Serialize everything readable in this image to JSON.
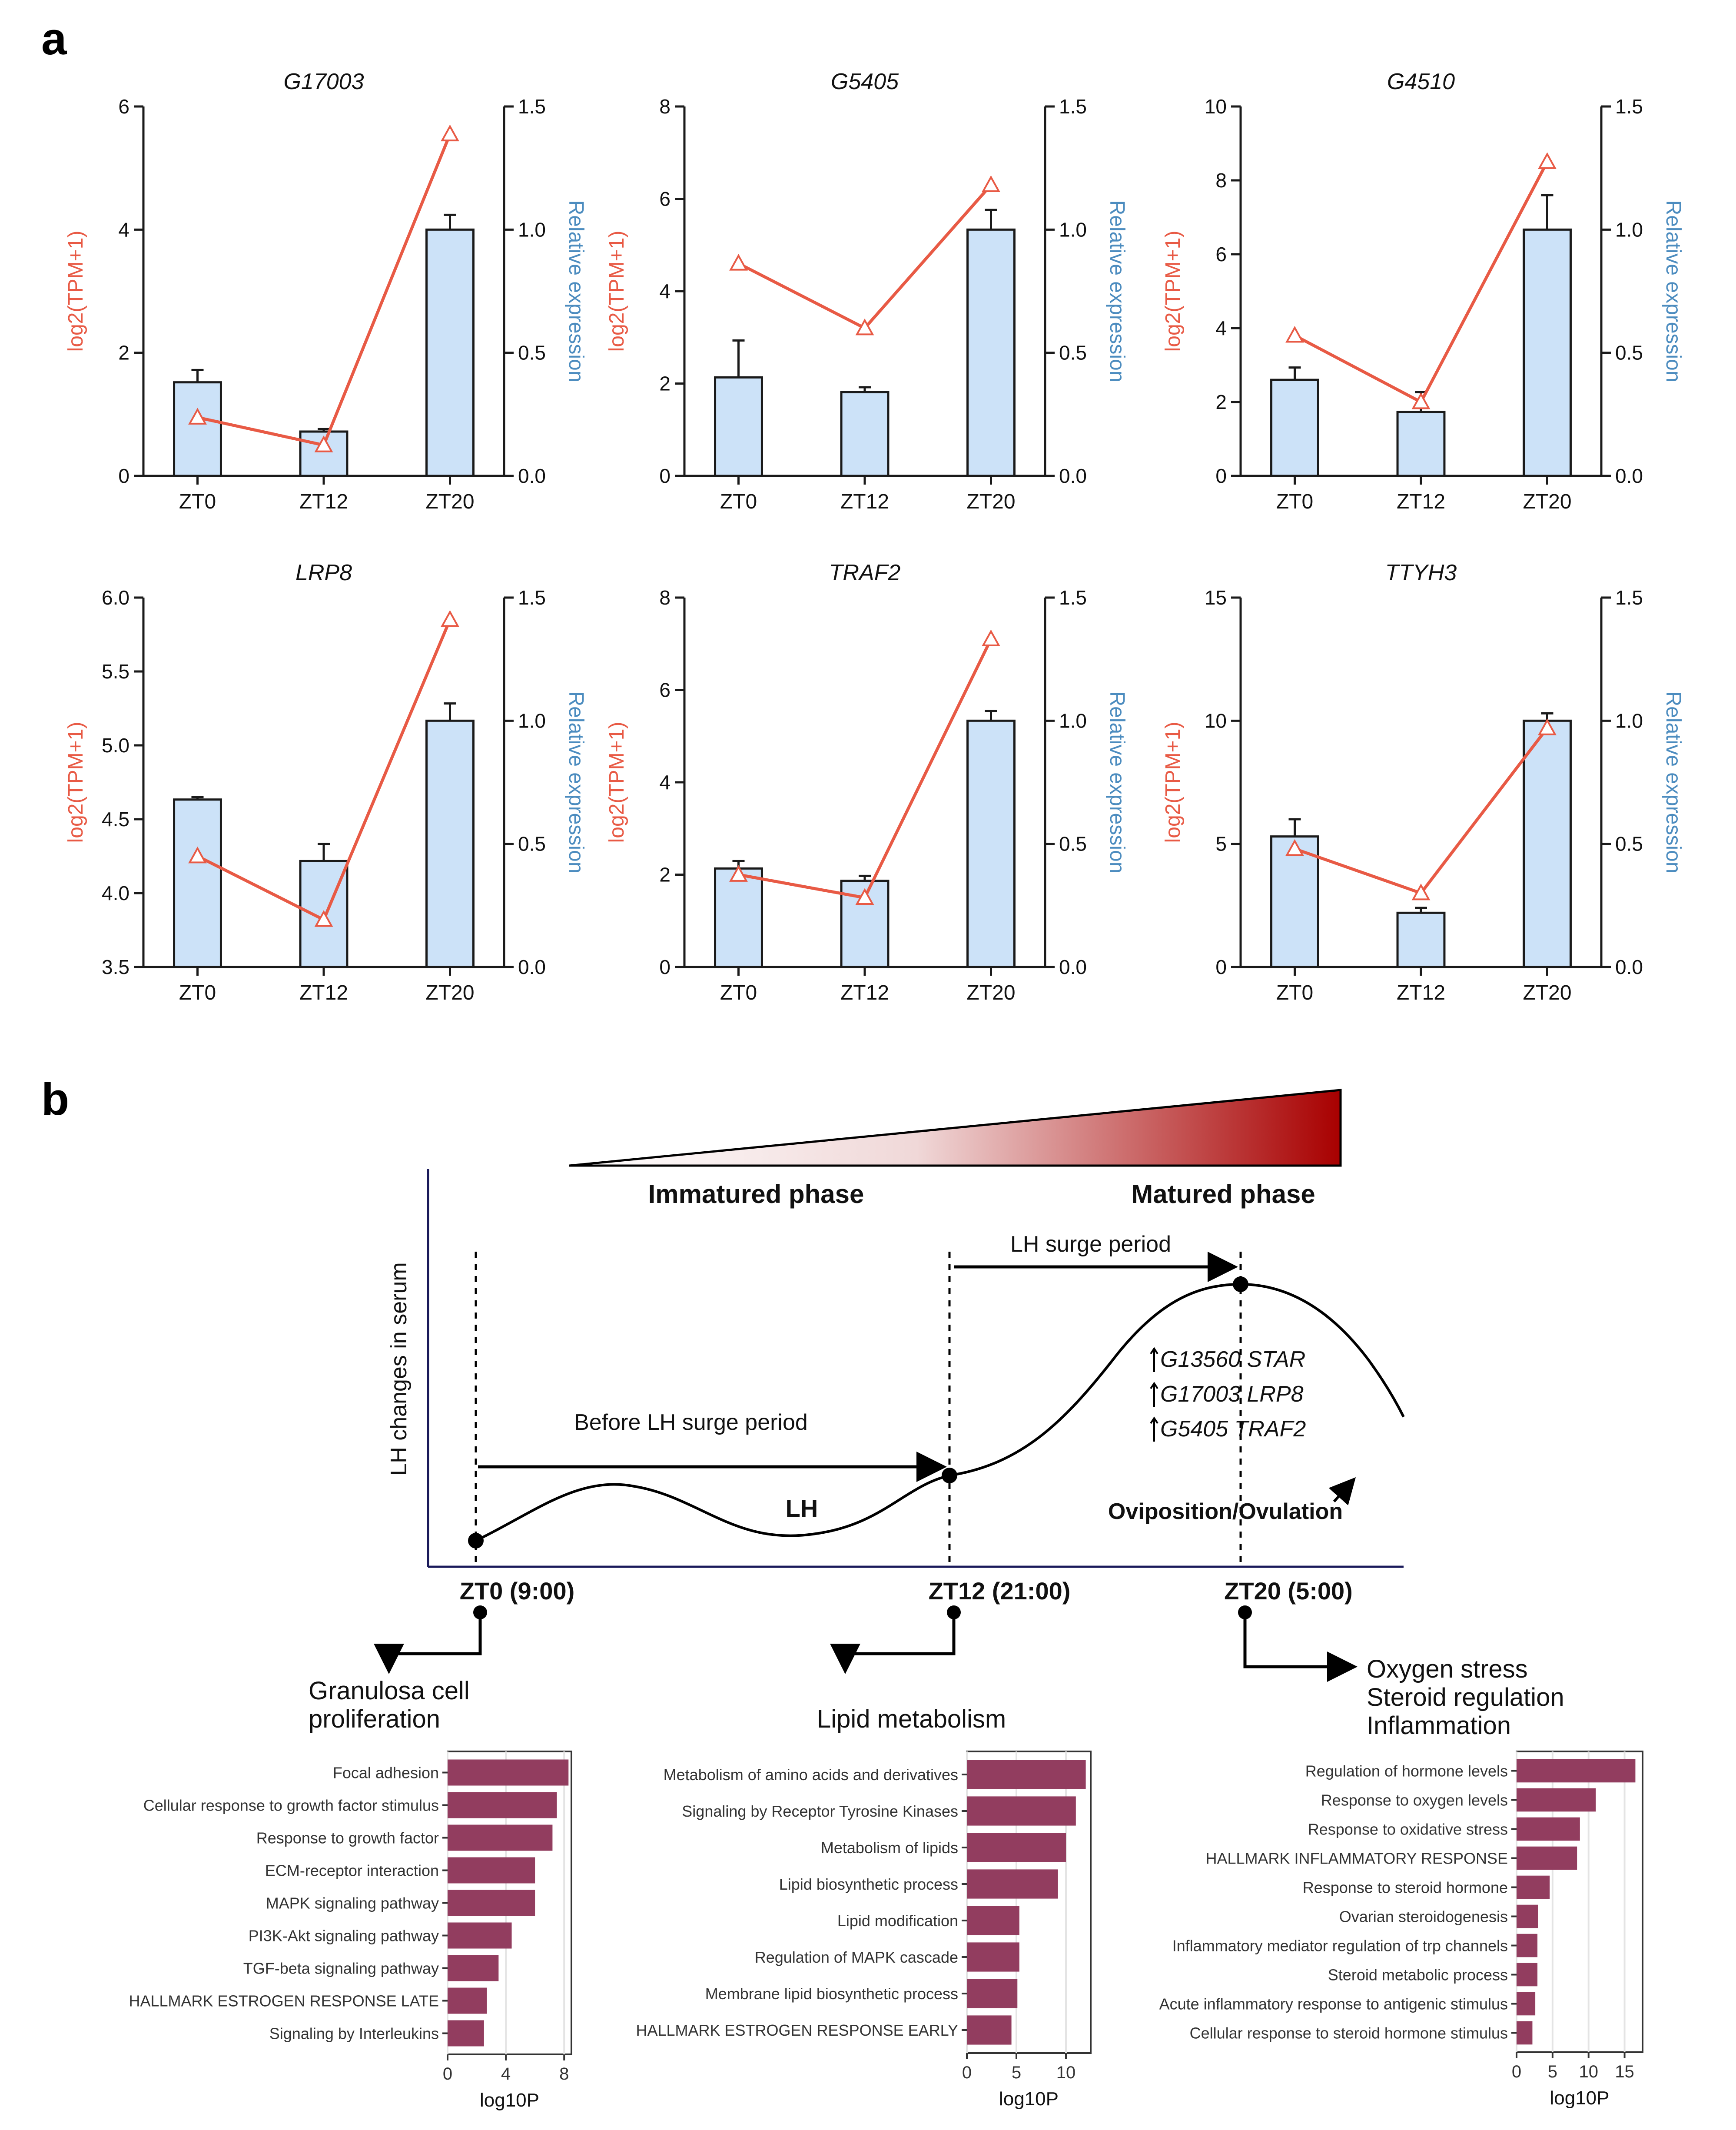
{
  "panel_labels": {
    "a": "a",
    "b": "b"
  },
  "colors": {
    "line": "#e85a45",
    "bar_fill": "#cce2f8",
    "bar_stroke": "#1a1a1a",
    "axis": "#1a1a1a",
    "right_label": "#4c8cbf",
    "enrich_bar": "#923d5f",
    "gradient_dark": "#a80000",
    "timeline_axis": "#1a1a5a"
  },
  "chart_data": [
    {
      "type": "bar+line",
      "title": "G17003",
      "categories": [
        "ZT0",
        "ZT12",
        "ZT20"
      ],
      "left_axis": {
        "label": "log2(TPM+1)",
        "min": 0,
        "max": 6,
        "ticks": [
          "0",
          "2",
          "4",
          "6"
        ],
        "tick_values": [
          0,
          2,
          4,
          6
        ]
      },
      "right_axis": {
        "label": "Relative expression",
        "min": 0,
        "max": 1.5,
        "ticks": [
          "0.0",
          "0.5",
          "1.0",
          "1.5"
        ],
        "tick_values": [
          0,
          0.5,
          1.0,
          1.5
        ]
      },
      "bars": [
        0.38,
        0.18,
        1.0
      ],
      "bar_errors": [
        0.05,
        0.01,
        0.06
      ],
      "line": [
        0.95,
        0.5,
        5.55
      ]
    },
    {
      "type": "bar+line",
      "title": "G5405",
      "categories": [
        "ZT0",
        "ZT12",
        "ZT20"
      ],
      "left_axis": {
        "label": "log2(TPM+1)",
        "min": 0,
        "max": 8,
        "ticks": [
          "0",
          "2",
          "4",
          "6",
          "8"
        ],
        "tick_values": [
          0,
          2,
          4,
          6,
          8
        ]
      },
      "right_axis": {
        "label": "Relative expression",
        "min": 0,
        "max": 1.5,
        "ticks": [
          "0.0",
          "0.5",
          "1.0",
          "1.5"
        ],
        "tick_values": [
          0,
          0.5,
          1.0,
          1.5
        ]
      },
      "bars": [
        0.4,
        0.34,
        1.0
      ],
      "bar_errors": [
        0.15,
        0.02,
        0.08
      ],
      "line": [
        4.6,
        3.2,
        6.3
      ]
    },
    {
      "type": "bar+line",
      "title": "G4510",
      "categories": [
        "ZT0",
        "ZT12",
        "ZT20"
      ],
      "left_axis": {
        "label": "log2(TPM+1)",
        "min": 0,
        "max": 10,
        "ticks": [
          "0",
          "2",
          "4",
          "6",
          "8",
          "10"
        ],
        "tick_values": [
          0,
          2,
          4,
          6,
          8,
          10
        ]
      },
      "right_axis": {
        "label": "Relative expression",
        "min": 0,
        "max": 1.5,
        "ticks": [
          "0.0",
          "0.5",
          "1.0",
          "1.5"
        ],
        "tick_values": [
          0,
          0.5,
          1.0,
          1.5
        ]
      },
      "bars": [
        0.39,
        0.26,
        1.0
      ],
      "bar_errors": [
        0.05,
        0.08,
        0.14
      ],
      "line": [
        3.8,
        2.0,
        8.5
      ]
    },
    {
      "type": "bar+line",
      "title": "LRP8",
      "categories": [
        "ZT0",
        "ZT12",
        "ZT20"
      ],
      "left_axis": {
        "label": "log2(TPM+1)",
        "min": 3.5,
        "max": 6.0,
        "ticks": [
          "3.5",
          "4.0",
          "4.5",
          "5.0",
          "5.5",
          "6.0"
        ],
        "tick_values": [
          3.5,
          4.0,
          4.5,
          5.0,
          5.5,
          6.0
        ]
      },
      "right_axis": {
        "label": "Relative expression",
        "min": 0,
        "max": 1.5,
        "ticks": [
          "0.0",
          "0.5",
          "1.0",
          "1.5"
        ],
        "tick_values": [
          0,
          0.5,
          1.0,
          1.5
        ]
      },
      "bars": [
        0.68,
        0.43,
        1.0
      ],
      "bar_errors": [
        0.01,
        0.07,
        0.07
      ],
      "line": [
        4.25,
        3.82,
        5.85
      ]
    },
    {
      "type": "bar+line",
      "title": "TRAF2",
      "categories": [
        "ZT0",
        "ZT12",
        "ZT20"
      ],
      "left_axis": {
        "label": "log2(TPM+1)",
        "min": 0,
        "max": 8,
        "ticks": [
          "0",
          "2",
          "4",
          "6",
          "8"
        ],
        "tick_values": [
          0,
          2,
          4,
          6,
          8
        ]
      },
      "right_axis": {
        "label": "Relative expression",
        "min": 0,
        "max": 1.5,
        "ticks": [
          "0.0",
          "0.5",
          "1.0",
          "1.5"
        ],
        "tick_values": [
          0,
          0.5,
          1.0,
          1.5
        ]
      },
      "bars": [
        0.4,
        0.35,
        1.0
      ],
      "bar_errors": [
        0.03,
        0.02,
        0.04
      ],
      "line": [
        2.0,
        1.5,
        7.1
      ]
    },
    {
      "type": "bar+line",
      "title": "TTYH3",
      "categories": [
        "ZT0",
        "ZT12",
        "ZT20"
      ],
      "left_axis": {
        "label": "log2(TPM+1)",
        "min": 0,
        "max": 15,
        "ticks": [
          "0",
          "5",
          "10",
          "15"
        ],
        "tick_values": [
          0,
          5,
          10,
          15
        ]
      },
      "right_axis": {
        "label": "Relative expression",
        "min": 0,
        "max": 1.5,
        "ticks": [
          "0.0",
          "0.5",
          "1.0",
          "1.5"
        ],
        "tick_values": [
          0,
          0.5,
          1.0,
          1.5
        ]
      },
      "bars": [
        0.53,
        0.22,
        1.0
      ],
      "bar_errors": [
        0.07,
        0.02,
        0.03
      ],
      "line": [
        4.8,
        3.0,
        9.7
      ]
    },
    {
      "type": "bar",
      "orientation": "horizontal",
      "xlabel": "log10P",
      "xlim": [
        0,
        8.5
      ],
      "xticks": [
        "0",
        "4",
        "8"
      ],
      "xtick_values": [
        0,
        4,
        8
      ],
      "categories": [
        "Focal adhesion",
        "Cellular response to growth factor stimulus",
        "Response to growth factor",
        "ECM-receptor interaction",
        "MAPK signaling pathway",
        "PI3K-Akt signaling pathway",
        "TGF-beta signaling pathway",
        "HALLMARK ESTROGEN RESPONSE LATE",
        "Signaling by Interleukins"
      ],
      "values": [
        8.3,
        7.5,
        7.2,
        6.0,
        6.0,
        4.4,
        3.5,
        2.7,
        2.5
      ]
    },
    {
      "type": "bar",
      "orientation": "horizontal",
      "xlabel": "log10P",
      "xlim": [
        0,
        12.5
      ],
      "xticks": [
        "0",
        "5",
        "10"
      ],
      "xtick_values": [
        0,
        5,
        10
      ],
      "categories": [
        "Metabolism of amino acids and derivatives",
        "Signaling by Receptor Tyrosine Kinases",
        "Metabolism of lipids",
        "Lipid biosynthetic process",
        "Lipid modification",
        "Regulation of MAPK cascade",
        "Membrane lipid biosynthetic process",
        "HALLMARK ESTROGEN RESPONSE EARLY"
      ],
      "values": [
        12.0,
        11.0,
        10.0,
        9.2,
        5.3,
        5.3,
        5.1,
        4.5
      ]
    },
    {
      "type": "bar",
      "orientation": "horizontal",
      "xlabel": "log10P",
      "xlim": [
        0,
        17.5
      ],
      "xticks": [
        "0",
        "5",
        "10",
        "15"
      ],
      "xtick_values": [
        0,
        5,
        10,
        15
      ],
      "categories": [
        "Regulation of hormone levels",
        "Response to oxygen levels",
        "Response to oxidative stress",
        "HALLMARK INFLAMMATORY RESPONSE",
        "Response to steroid hormone",
        "Ovarian steroidogenesis",
        "Inflammatory mediator regulation of trp channels",
        "Steroid metabolic process",
        "Acute inflammatory response to antigenic stimulus",
        "Cellular response to steroid hormone stimulus"
      ],
      "values": [
        16.5,
        11.0,
        8.8,
        8.4,
        4.6,
        3.0,
        2.9,
        2.9,
        2.6,
        2.2
      ]
    }
  ],
  "timeline": {
    "phase_immature": "Immatured phase",
    "phase_mature": "Matured phase",
    "y_label": "LH changes in serum",
    "surge_label": "LH surge period",
    "before_label": "Before LH surge period",
    "curve_label": "LH",
    "genes": [
      "G13560 STAR",
      "G17003 LRP8",
      "G5405 TRAF2"
    ],
    "ovulation_label": "Oviposition/Ovulation",
    "timepoints": [
      "ZT0 (9:00)",
      "ZT12 (21:00)",
      "ZT20 (5:00)"
    ],
    "functions": [
      [
        "Granulosa cell",
        "proliferation"
      ],
      [
        "Lipid metabolism"
      ],
      [
        "Oxygen stress",
        "Steroid regulation",
        "Inflammation"
      ]
    ]
  }
}
